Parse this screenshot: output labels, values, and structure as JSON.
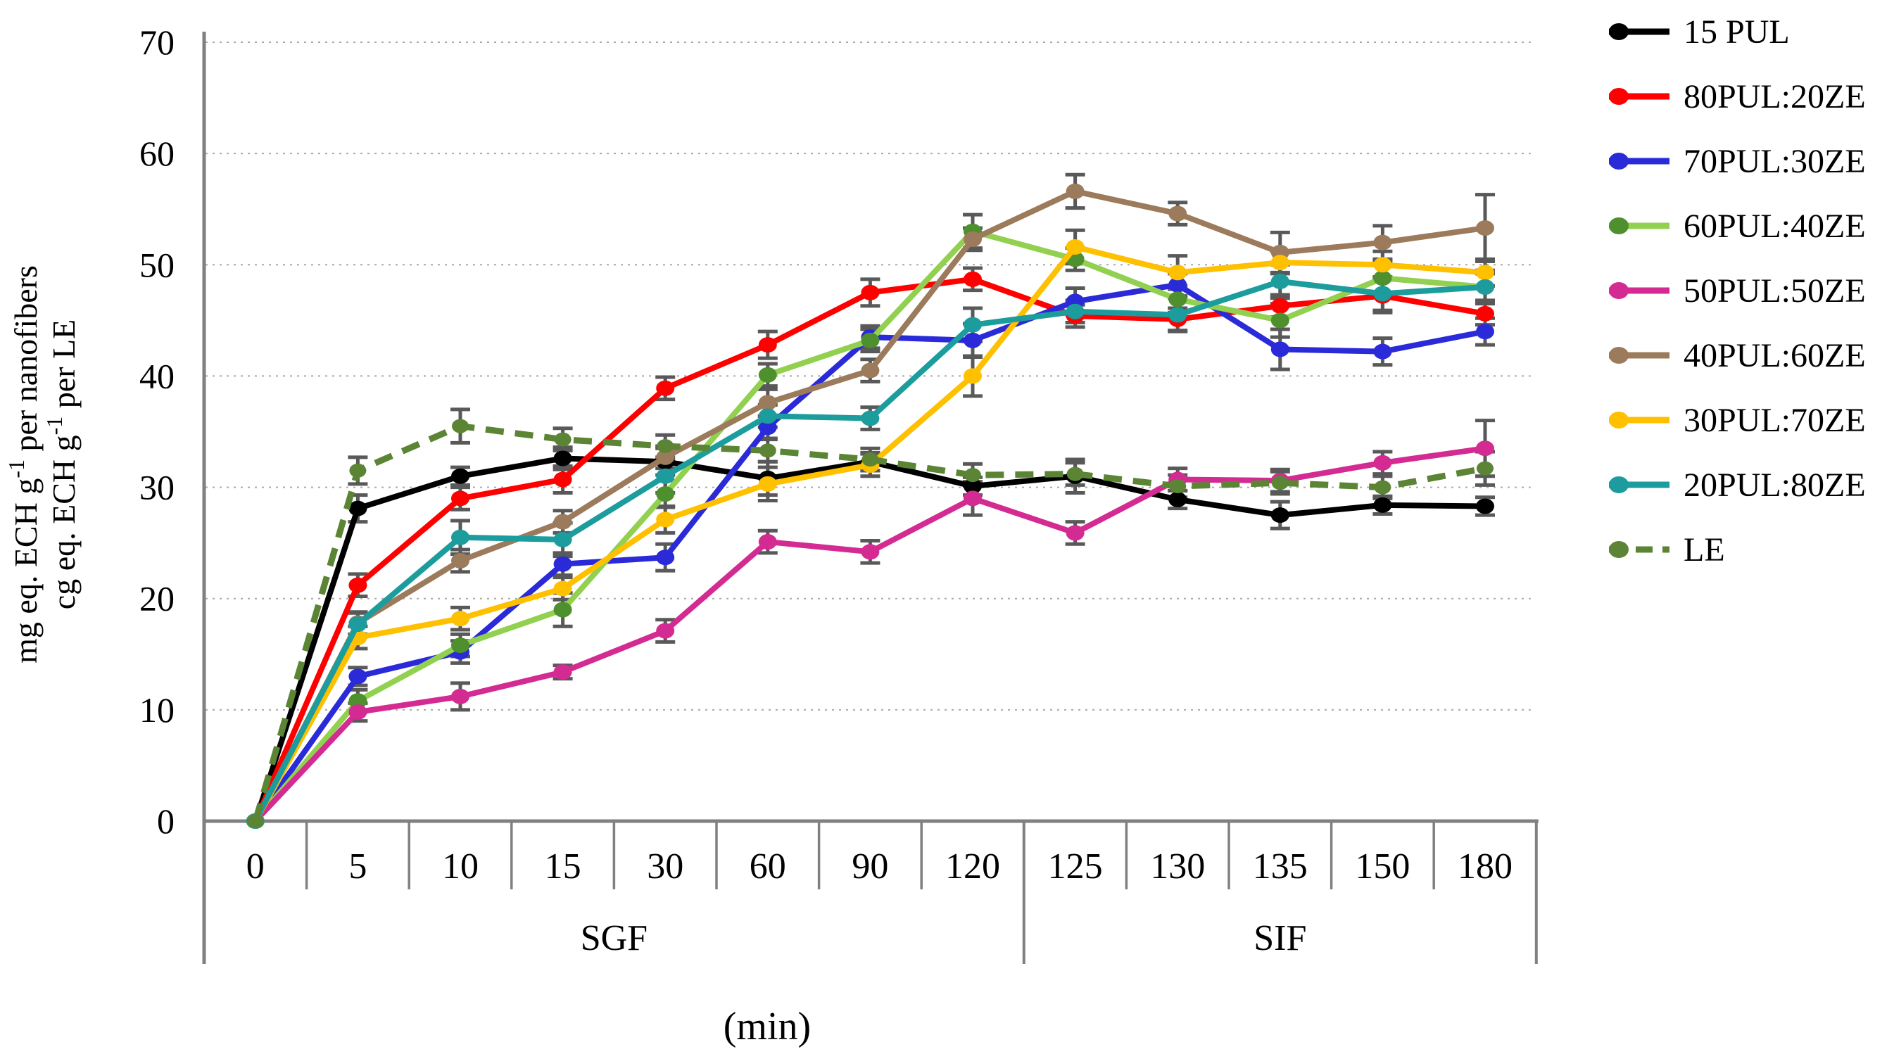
{
  "chart_data": {
    "type": "line",
    "title": "",
    "xlabel": "(min)",
    "ylabel_lines": [
      {
        "pre": "mg eq. ECH g",
        "sup": "-1",
        "post": " per nanofibers"
      },
      {
        "pre": "cg eq. ECH g",
        "sup": "-1",
        "post": " per LE"
      }
    ],
    "ylim": [
      0,
      70
    ],
    "yticks": [
      0,
      10,
      20,
      30,
      40,
      50,
      60,
      70
    ],
    "grid": "dotted horizontal every 10",
    "legend_position": "right",
    "categories": [
      "0",
      "5",
      "10",
      "15",
      "30",
      "60",
      "90",
      "120",
      "125",
      "130",
      "135",
      "150",
      "180"
    ],
    "groups": [
      {
        "label": "SGF",
        "start": 0,
        "end": 8
      },
      {
        "label": "SIF",
        "start": 8,
        "end": 13
      }
    ],
    "series": [
      {
        "name": "15 PUL",
        "color": "#000000",
        "marker_color": "#000000",
        "dashed": false,
        "values": [
          0,
          28.1,
          31.0,
          32.6,
          32.3,
          30.8,
          32.3,
          30.1,
          31.0,
          28.9,
          27.5,
          28.4,
          28.3
        ],
        "err": [
          0,
          1.2,
          0.8,
          1.0,
          1.2,
          1.5,
          0.8,
          0.8,
          1.5,
          0.8,
          1.2,
          0.8,
          0.8
        ]
      },
      {
        "name": "80PUL:20ZE",
        "color": "#FF0000",
        "marker_color": "#FF0000",
        "dashed": false,
        "values": [
          0,
          21.2,
          29.0,
          30.7,
          38.9,
          42.8,
          47.5,
          48.7,
          45.4,
          45.1,
          46.3,
          47.2,
          45.6
        ],
        "err": [
          0,
          1.0,
          1.0,
          1.2,
          1.0,
          1.2,
          1.2,
          1.0,
          1.0,
          1.0,
          1.0,
          1.5,
          1.0
        ]
      },
      {
        "name": "70PUL:30ZE",
        "color": "#2A2AD8",
        "marker_color": "#2A2AD8",
        "dashed": false,
        "values": [
          0,
          13.0,
          15.2,
          23.1,
          23.7,
          35.4,
          43.5,
          43.2,
          46.7,
          48.2,
          42.4,
          42.2,
          44.0
        ],
        "err": [
          0,
          0.8,
          1.0,
          1.0,
          1.2,
          1.0,
          1.0,
          1.5,
          1.2,
          1.0,
          1.8,
          1.2,
          1.2
        ]
      },
      {
        "name": "60PUL:40ZE",
        "color": "#92D050",
        "marker_color": "#4E8F2E",
        "dashed": false,
        "values": [
          0,
          10.8,
          15.8,
          19.0,
          29.4,
          40.1,
          43.2,
          53.0,
          50.5,
          46.9,
          45.0,
          48.8,
          48.0
        ],
        "err": [
          0,
          1.0,
          1.0,
          1.5,
          1.2,
          1.0,
          1.0,
          1.5,
          1.0,
          1.2,
          1.5,
          1.5,
          1.5
        ]
      },
      {
        "name": "50PUL:50ZE",
        "color": "#D42B92",
        "marker_color": "#D42B92",
        "dashed": false,
        "values": [
          0,
          9.8,
          11.2,
          13.4,
          17.1,
          25.1,
          24.2,
          29.0,
          25.9,
          30.7,
          30.6,
          32.2,
          33.5
        ],
        "err": [
          0,
          0.8,
          1.2,
          0.6,
          1.0,
          1.0,
          1.0,
          1.5,
          1.0,
          1.0,
          1.0,
          1.0,
          2.5
        ]
      },
      {
        "name": "40PUL:60ZE",
        "color": "#9C7B5C",
        "marker_color": "#9C7B5C",
        "dashed": false,
        "values": [
          0,
          17.8,
          23.4,
          26.9,
          32.7,
          37.6,
          40.5,
          52.3,
          56.6,
          54.6,
          51.1,
          52.0,
          53.3
        ],
        "err": [
          0,
          1.0,
          1.0,
          1.0,
          1.0,
          1.2,
          1.0,
          1.0,
          1.5,
          1.0,
          1.8,
          1.5,
          3.0
        ]
      },
      {
        "name": "30PUL:70ZE",
        "color": "#FFC000",
        "marker_color": "#FFC000",
        "dashed": false,
        "values": [
          0,
          16.5,
          18.2,
          20.9,
          27.1,
          30.3,
          32.0,
          40.0,
          51.6,
          49.3,
          50.2,
          50.0,
          49.3
        ],
        "err": [
          0,
          1.0,
          1.0,
          1.0,
          1.2,
          1.5,
          1.0,
          1.8,
          1.5,
          1.5,
          1.0,
          1.2,
          1.2
        ]
      },
      {
        "name": "20PUL:80ZE",
        "color": "#1C9C9C",
        "marker_color": "#1C9C9C",
        "dashed": false,
        "values": [
          0,
          17.7,
          25.5,
          25.3,
          31.0,
          36.4,
          36.2,
          44.6,
          45.8,
          45.5,
          48.5,
          47.4,
          48.0
        ],
        "err": [
          0,
          1.0,
          1.5,
          1.5,
          1.5,
          1.0,
          1.0,
          1.5,
          1.0,
          1.5,
          1.5,
          1.5,
          1.2
        ]
      },
      {
        "name": "LE",
        "color": "#5B8534",
        "marker_color": "#5B8534",
        "dashed": true,
        "values": [
          0,
          31.5,
          35.5,
          34.3,
          33.7,
          33.3,
          32.5,
          31.1,
          31.2,
          30.1,
          30.4,
          30.0,
          31.7
        ],
        "err": [
          0,
          1.2,
          1.5,
          1.0,
          1.0,
          1.0,
          1.0,
          1.0,
          1.0,
          1.0,
          1.0,
          1.0,
          1.5
        ]
      }
    ]
  },
  "colors": {
    "axis": "#808080",
    "gridline": "#A9A9A9",
    "error_bar": "#595959",
    "text": "#000000",
    "background": "#FFFFFF"
  }
}
